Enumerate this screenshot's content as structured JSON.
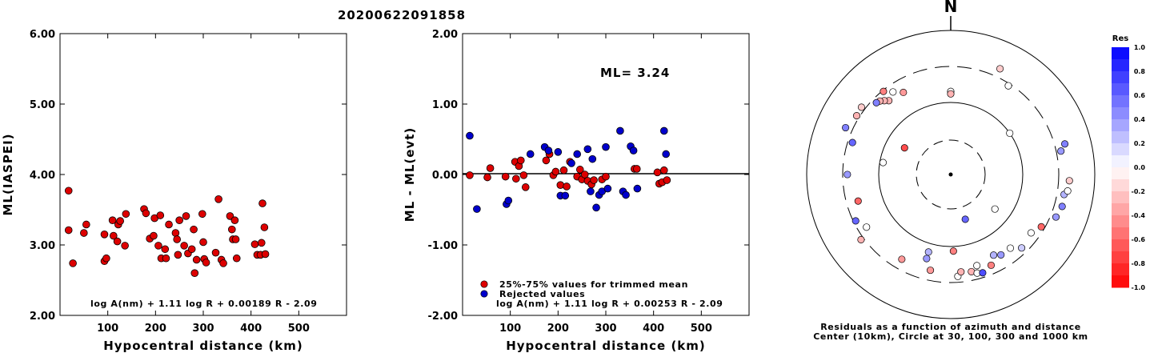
{
  "title": "20200622091858",
  "chart_data": [
    {
      "type": "scatter",
      "ylabel": "ML(IASPEI)",
      "xlabel": "Hypocentral distance (km)",
      "xlim": [
        0,
        600
      ],
      "ylim": [
        2.0,
        6.0
      ],
      "xticks": [
        "100",
        "200",
        "300",
        "400",
        "500"
      ],
      "yticks": [
        "2.00",
        "3.00",
        "4.00",
        "5.00",
        "6.00"
      ],
      "annotation": "log A(nm) + 1.11 log R + 0.00189 R - 2.09",
      "series": [
        {
          "color": "#dd0000",
          "points": [
            [
              18,
              3.77
            ],
            [
              18,
              3.21
            ],
            [
              27,
              2.74
            ],
            [
              50,
              3.17
            ],
            [
              55,
              3.29
            ],
            [
              93,
              3.15
            ],
            [
              93,
              2.77
            ],
            [
              97,
              2.81
            ],
            [
              110,
              3.35
            ],
            [
              112,
              3.13
            ],
            [
              120,
              3.05
            ],
            [
              122,
              3.29
            ],
            [
              126,
              3.34
            ],
            [
              136,
              2.99
            ],
            [
              138,
              3.44
            ],
            [
              176,
              3.51
            ],
            [
              180,
              3.45
            ],
            [
              188,
              3.09
            ],
            [
              196,
              3.13
            ],
            [
              198,
              3.38
            ],
            [
              206,
              2.99
            ],
            [
              210,
              3.42
            ],
            [
              212,
              2.81
            ],
            [
              220,
              2.94
            ],
            [
              222,
              2.81
            ],
            [
              228,
              3.29
            ],
            [
              242,
              3.17
            ],
            [
              245,
              3.08
            ],
            [
              247,
              2.86
            ],
            [
              250,
              3.35
            ],
            [
              260,
              2.99
            ],
            [
              264,
              3.41
            ],
            [
              268,
              2.88
            ],
            [
              276,
              2.94
            ],
            [
              280,
              3.22
            ],
            [
              282,
              2.6
            ],
            [
              286,
              2.79
            ],
            [
              298,
              3.44
            ],
            [
              300,
              3.04
            ],
            [
              302,
              2.8
            ],
            [
              306,
              2.75
            ],
            [
              326,
              2.89
            ],
            [
              332,
              3.65
            ],
            [
              338,
              2.79
            ],
            [
              342,
              2.74
            ],
            [
              356,
              3.41
            ],
            [
              360,
              3.22
            ],
            [
              362,
              3.08
            ],
            [
              366,
              3.35
            ],
            [
              368,
              3.08
            ],
            [
              370,
              2.81
            ],
            [
              408,
              3.01
            ],
            [
              413,
              2.86
            ],
            [
              420,
              2.86
            ],
            [
              422,
              3.03
            ],
            [
              424,
              3.59
            ],
            [
              428,
              3.25
            ],
            [
              430,
              2.87
            ]
          ]
        }
      ]
    },
    {
      "type": "scatter",
      "ylabel": "ML - ML(evt)",
      "xlabel": "Hypocentral distance (km)",
      "xlim": [
        0,
        600
      ],
      "ylim": [
        -2.0,
        2.0
      ],
      "xticks": [
        "100",
        "200",
        "300",
        "400",
        "500"
      ],
      "yticks": [
        "-2.00",
        "-1.00",
        "0.00",
        "1.00",
        "2.00"
      ],
      "ml_text": "ML=  3.24",
      "legend": [
        "25%-75% values for trimmed mean",
        "Rejected values"
      ],
      "annotation": "log A(nm) + 1.11 log R + 0.00253 R - 2.09",
      "series": [
        {
          "name": "25%-75% values for trimmed mean",
          "color": "#dd0000",
          "points": [
            [
              15,
              -0.01
            ],
            [
              52,
              -0.04
            ],
            [
              58,
              0.09
            ],
            [
              90,
              -0.03
            ],
            [
              110,
              0.18
            ],
            [
              112,
              -0.06
            ],
            [
              118,
              0.12
            ],
            [
              122,
              0.2
            ],
            [
              128,
              -0.01
            ],
            [
              132,
              -0.18
            ],
            [
              175,
              0.2
            ],
            [
              182,
              0.29
            ],
            [
              190,
              -0.01
            ],
            [
              195,
              0.04
            ],
            [
              205,
              -0.15
            ],
            [
              212,
              0.06
            ],
            [
              218,
              -0.17
            ],
            [
              225,
              0.18
            ],
            [
              240,
              -0.03
            ],
            [
              246,
              0.07
            ],
            [
              250,
              -0.07
            ],
            [
              256,
              0.0
            ],
            [
              262,
              -0.09
            ],
            [
              270,
              -0.14
            ],
            [
              275,
              -0.08
            ],
            [
              292,
              -0.07
            ],
            [
              300,
              -0.03
            ],
            [
              360,
              0.08
            ],
            [
              365,
              0.08
            ],
            [
              408,
              0.03
            ],
            [
              412,
              -0.13
            ],
            [
              418,
              -0.11
            ],
            [
              422,
              0.06
            ],
            [
              428,
              -0.08
            ]
          ]
        },
        {
          "name": "Rejected values",
          "color": "#0000cc",
          "points": [
            [
              15,
              0.55
            ],
            [
              30,
              -0.49
            ],
            [
              92,
              -0.42
            ],
            [
              96,
              -0.37
            ],
            [
              142,
              0.29
            ],
            [
              172,
              0.39
            ],
            [
              180,
              0.34
            ],
            [
              200,
              0.32
            ],
            [
              205,
              -0.3
            ],
            [
              215,
              -0.3
            ],
            [
              228,
              0.16
            ],
            [
              240,
              0.29
            ],
            [
              262,
              0.36
            ],
            [
              268,
              -0.24
            ],
            [
              272,
              0.22
            ],
            [
              280,
              -0.47
            ],
            [
              286,
              -0.29
            ],
            [
              292,
              -0.24
            ],
            [
              300,
              0.39
            ],
            [
              304,
              -0.2
            ],
            [
              330,
              0.62
            ],
            [
              336,
              -0.24
            ],
            [
              342,
              -0.29
            ],
            [
              352,
              0.4
            ],
            [
              358,
              0.34
            ],
            [
              366,
              -0.2
            ],
            [
              422,
              0.62
            ],
            [
              426,
              0.29
            ]
          ]
        }
      ]
    },
    {
      "type": "scatter",
      "subtype": "polar",
      "north_label": "N",
      "caption": [
        "Residuals as a function of azimuth and distance",
        "Center (10km), Circle at 30, 100, 300 and 1000 km"
      ],
      "rings_km": [
        30,
        100,
        300,
        1000
      ],
      "colorbar": {
        "title": "Res",
        "range": [
          -1.0,
          1.0
        ],
        "ticks": [
          "1.0",
          "0.8",
          "0.6",
          "0.4",
          "0.2",
          "0.0",
          "-0.2",
          "-0.4",
          "-0.6",
          "-0.8",
          "-1.0"
        ],
        "positive_color": "#0000ff",
        "negative_color": "#ff0000"
      },
      "stations": [
        {
          "az": 0,
          "dist": 140,
          "res": 0.0
        },
        {
          "az": 0,
          "dist": 130,
          "res": -0.3
        },
        {
          "az": 55,
          "dist": 100,
          "res": 0.0
        },
        {
          "az": 128,
          "dist": 60,
          "res": 0.0
        },
        {
          "az": 162,
          "dist": 45,
          "res": 0.6
        },
        {
          "az": 300,
          "dist": 55,
          "res": -0.7
        },
        {
          "az": 280,
          "dist": 90,
          "res": 0.0
        },
        {
          "az": 33,
          "dist": 280,
          "res": 0.0
        },
        {
          "az": 330,
          "dist": 200,
          "res": -0.4
        },
        {
          "az": 320,
          "dist": 210,
          "res": -0.3
        },
        {
          "az": 325,
          "dist": 240,
          "res": 0.0
        },
        {
          "az": 318,
          "dist": 230,
          "res": -0.3
        },
        {
          "az": 316,
          "dist": 250,
          "res": -0.3
        },
        {
          "az": 314,
          "dist": 260,
          "res": 0.5
        },
        {
          "az": 321,
          "dist": 290,
          "res": -0.5
        },
        {
          "az": 307,
          "dist": 340,
          "res": -0.2
        },
        {
          "az": 294,
          "dist": 380,
          "res": 0.5
        },
        {
          "az": 302,
          "dist": 330,
          "res": -0.3
        },
        {
          "az": 288,
          "dist": 260,
          "res": 0.6
        },
        {
          "az": 270,
          "dist": 260,
          "res": 0.4
        },
        {
          "az": 254,
          "dist": 210,
          "res": -0.6
        },
        {
          "az": 244,
          "dist": 280,
          "res": 0.6
        },
        {
          "az": 234,
          "dist": 330,
          "res": -0.3
        },
        {
          "az": 238,
          "dist": 230,
          "res": 0.0
        },
        {
          "az": 196,
          "dist": 160,
          "res": 0.4
        },
        {
          "az": 196,
          "dist": 130,
          "res": 0.3
        },
        {
          "az": 178,
          "dist": 115,
          "res": -0.5
        },
        {
          "az": 210,
          "dist": 220,
          "res": -0.4
        },
        {
          "az": 192,
          "dist": 220,
          "res": -0.4
        },
        {
          "az": 176,
          "dist": 250,
          "res": 0.0
        },
        {
          "az": 174,
          "dist": 220,
          "res": -0.3
        },
        {
          "az": 168,
          "dist": 230,
          "res": -0.3
        },
        {
          "az": 165,
          "dist": 250,
          "res": 0.0
        },
        {
          "az": 164,
          "dist": 200,
          "res": 0.0
        },
        {
          "az": 156,
          "dist": 230,
          "res": -0.5
        },
        {
          "az": 162,
          "dist": 260,
          "res": 0.7
        },
        {
          "az": 152,
          "dist": 180,
          "res": 0.3
        },
        {
          "az": 148,
          "dist": 200,
          "res": 0.4
        },
        {
          "az": 141,
          "dist": 200,
          "res": 0.0
        },
        {
          "az": 136,
          "dist": 250,
          "res": 0.2
        },
        {
          "az": 126,
          "dist": 230,
          "res": 0.0
        },
        {
          "az": 120,
          "dist": 270,
          "res": -0.6
        },
        {
          "az": 112,
          "dist": 360,
          "res": 0.4
        },
        {
          "az": 106,
          "dist": 390,
          "res": 0.5
        },
        {
          "az": 100,
          "dist": 380,
          "res": 0.3
        },
        {
          "az": 98,
          "dist": 420,
          "res": 0.0
        },
        {
          "az": 93,
          "dist": 430,
          "res": -0.2
        },
        {
          "az": 78,
          "dist": 350,
          "res": 0.4
        },
        {
          "az": 75,
          "dist": 420,
          "res": 0.5
        },
        {
          "az": 25,
          "dist": 400,
          "res": -0.2
        }
      ]
    }
  ]
}
